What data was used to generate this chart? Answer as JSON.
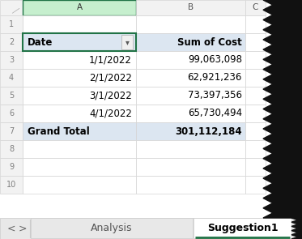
{
  "col_header_bg": "#c6efce",
  "col_header_border": "#217346",
  "pivot_header_bg": "#dce6f1",
  "grand_total_bg": "#dce6f1",
  "col_letters": [
    "A",
    "B",
    "C"
  ],
  "dates": [
    "1/1/2022",
    "2/1/2022",
    "3/1/2022",
    "4/1/2022"
  ],
  "costs": [
    "99,063,098",
    "62,921,236",
    "73,397,356",
    "65,730,494"
  ],
  "grand_total_label": "Grand Total",
  "grand_total_value": "301,112,184",
  "date_header": "Date",
  "cost_header": "Sum of Cost",
  "tab_active": "Suggestion1",
  "tab_inactive": "Analysis",
  "tab_active_color": "#217346",
  "row_num_color": "#7f7f7f",
  "grid_color": "#d4d4d4",
  "cell_bg": "#ffffff",
  "text_color": "#000000",
  "row_num_bg": "#f2f2f2",
  "col_header_plain_bg": "#f2f2f2",
  "jagged_color": "#111111",
  "fig_bg": "#f0f0f0",
  "tab_bar_bg": "#e8e8e8",
  "dropdown_color": "#5a5a5a"
}
